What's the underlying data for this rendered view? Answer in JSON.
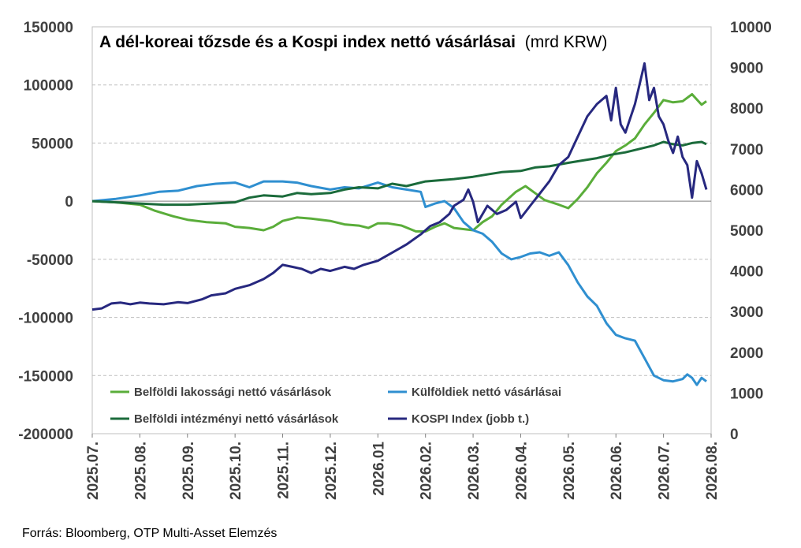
{
  "chart_data": {
    "type": "line",
    "title": "A dél-koreai tőzsde és a Kospi index nettó vásárlásai",
    "title_unit": "(mrd KRW)",
    "source": "Forrás: Bloomberg, OTP Multi-Asset Elemzés",
    "x_ticks": [
      "2025.07.",
      "2025.08.",
      "2025.09.",
      "2025.10.",
      "2025.11.",
      "2025.12.",
      "2026.01",
      "2026.02.",
      "2026.03.",
      "2026.04.",
      "2026.05.",
      "2026.06.",
      "2026.07.",
      "2026.08."
    ],
    "ylim_left": [
      -200000,
      150000
    ],
    "yticks_left": [
      150000,
      100000,
      50000,
      0,
      -50000,
      -100000,
      -150000,
      -200000
    ],
    "ylim_right": [
      0,
      10000
    ],
    "yticks_right": [
      10000,
      9000,
      8000,
      7000,
      6000,
      5000,
      4000,
      3000,
      2000,
      1000,
      0
    ],
    "grid": true,
    "legend_placement": "bottom-left",
    "series": [
      {
        "name": "Belföldi lakossági nettó vásárlások",
        "color": "#5aad3a",
        "axis": "left",
        "points": [
          [
            0,
            0
          ],
          [
            0.5,
            -1000
          ],
          [
            1,
            -3000
          ],
          [
            1.3,
            -8000
          ],
          [
            1.7,
            -13000
          ],
          [
            2,
            -16000
          ],
          [
            2.4,
            -18000
          ],
          [
            2.8,
            -19000
          ],
          [
            3,
            -22000
          ],
          [
            3.3,
            -23000
          ],
          [
            3.6,
            -25000
          ],
          [
            3.8,
            -22000
          ],
          [
            4,
            -17000
          ],
          [
            4.3,
            -14000
          ],
          [
            4.6,
            -15000
          ],
          [
            5,
            -17000
          ],
          [
            5.3,
            -20000
          ],
          [
            5.6,
            -21000
          ],
          [
            5.8,
            -23000
          ],
          [
            6,
            -19000
          ],
          [
            6.2,
            -19000
          ],
          [
            6.5,
            -21000
          ],
          [
            6.8,
            -26000
          ],
          [
            7,
            -26000
          ],
          [
            7.2,
            -22000
          ],
          [
            7.4,
            -19000
          ],
          [
            7.6,
            -23000
          ],
          [
            8,
            -25000
          ],
          [
            8.2,
            -18000
          ],
          [
            8.4,
            -13000
          ],
          [
            8.6,
            -3000
          ],
          [
            8.9,
            8000
          ],
          [
            9.1,
            13000
          ],
          [
            9.3,
            7000
          ],
          [
            9.5,
            1000
          ],
          [
            9.8,
            -3000
          ],
          [
            10,
            -6000
          ],
          [
            10.2,
            2000
          ],
          [
            10.4,
            12000
          ],
          [
            10.6,
            24000
          ],
          [
            10.8,
            33000
          ],
          [
            11,
            43000
          ],
          [
            11.2,
            48000
          ],
          [
            11.4,
            54000
          ],
          [
            11.6,
            66000
          ],
          [
            11.8,
            76000
          ],
          [
            12,
            87000
          ],
          [
            12.2,
            85000
          ],
          [
            12.4,
            86000
          ],
          [
            12.6,
            92000
          ],
          [
            12.8,
            83000
          ],
          [
            12.9,
            86000
          ]
        ]
      },
      {
        "name": "Külföldiek nettó vásárlásai",
        "color": "#2f8fd0",
        "axis": "left",
        "points": [
          [
            0,
            0
          ],
          [
            0.5,
            2000
          ],
          [
            1,
            5000
          ],
          [
            1.4,
            8000
          ],
          [
            1.8,
            9000
          ],
          [
            2.2,
            13000
          ],
          [
            2.6,
            15000
          ],
          [
            3,
            16000
          ],
          [
            3.3,
            12000
          ],
          [
            3.6,
            17000
          ],
          [
            4,
            17000
          ],
          [
            4.3,
            16000
          ],
          [
            4.6,
            13000
          ],
          [
            5,
            10000
          ],
          [
            5.3,
            12000
          ],
          [
            5.6,
            11000
          ],
          [
            6,
            16000
          ],
          [
            6.3,
            12000
          ],
          [
            6.6,
            10000
          ],
          [
            6.9,
            8000
          ],
          [
            7,
            -5000
          ],
          [
            7.2,
            -2000
          ],
          [
            7.4,
            0
          ],
          [
            7.6,
            -6000
          ],
          [
            7.8,
            -18000
          ],
          [
            8,
            -25000
          ],
          [
            8.2,
            -28000
          ],
          [
            8.4,
            -35000
          ],
          [
            8.6,
            -45000
          ],
          [
            8.8,
            -50000
          ],
          [
            9,
            -48000
          ],
          [
            9.2,
            -45000
          ],
          [
            9.4,
            -44000
          ],
          [
            9.6,
            -47000
          ],
          [
            9.8,
            -44000
          ],
          [
            10,
            -55000
          ],
          [
            10.2,
            -70000
          ],
          [
            10.4,
            -82000
          ],
          [
            10.6,
            -90000
          ],
          [
            10.8,
            -105000
          ],
          [
            11,
            -115000
          ],
          [
            11.2,
            -118000
          ],
          [
            11.4,
            -120000
          ],
          [
            11.6,
            -135000
          ],
          [
            11.8,
            -150000
          ],
          [
            12,
            -154000
          ],
          [
            12.2,
            -155000
          ],
          [
            12.4,
            -153000
          ],
          [
            12.5,
            -149000
          ],
          [
            12.6,
            -152000
          ],
          [
            12.7,
            -158000
          ],
          [
            12.8,
            -152000
          ],
          [
            12.9,
            -155000
          ]
        ]
      },
      {
        "name": "Belföldi intézményi nettó vásárlások",
        "color": "#1b6b3b",
        "axis": "left",
        "points": [
          [
            0,
            0
          ],
          [
            0.5,
            -1000
          ],
          [
            1,
            -2000
          ],
          [
            1.5,
            -3000
          ],
          [
            2,
            -3000
          ],
          [
            2.5,
            -2000
          ],
          [
            3,
            -1000
          ],
          [
            3.3,
            3000
          ],
          [
            3.6,
            5000
          ],
          [
            4,
            4000
          ],
          [
            4.3,
            7000
          ],
          [
            4.6,
            6000
          ],
          [
            5,
            7000
          ],
          [
            5.3,
            10000
          ],
          [
            5.6,
            12000
          ],
          [
            6,
            11000
          ],
          [
            6.3,
            15000
          ],
          [
            6.6,
            13000
          ],
          [
            7,
            17000
          ],
          [
            7.3,
            18000
          ],
          [
            7.6,
            19000
          ],
          [
            8,
            21000
          ],
          [
            8.3,
            23000
          ],
          [
            8.6,
            25000
          ],
          [
            9,
            26000
          ],
          [
            9.3,
            29000
          ],
          [
            9.6,
            30000
          ],
          [
            10,
            33000
          ],
          [
            10.3,
            35000
          ],
          [
            10.6,
            37000
          ],
          [
            10.9,
            40000
          ],
          [
            11.2,
            42000
          ],
          [
            11.5,
            45000
          ],
          [
            11.8,
            48000
          ],
          [
            12,
            51000
          ],
          [
            12.2,
            49000
          ],
          [
            12.4,
            48000
          ],
          [
            12.6,
            50000
          ],
          [
            12.8,
            51000
          ],
          [
            12.9,
            49000
          ]
        ]
      },
      {
        "name": "KOSPI Index (jobb t.)",
        "color": "#27287f",
        "axis": "right",
        "points": [
          [
            0,
            3050
          ],
          [
            0.2,
            3080
          ],
          [
            0.4,
            3200
          ],
          [
            0.6,
            3220
          ],
          [
            0.8,
            3180
          ],
          [
            1,
            3220
          ],
          [
            1.2,
            3200
          ],
          [
            1.5,
            3180
          ],
          [
            1.8,
            3230
          ],
          [
            2,
            3210
          ],
          [
            2.3,
            3300
          ],
          [
            2.5,
            3400
          ],
          [
            2.8,
            3450
          ],
          [
            3,
            3560
          ],
          [
            3.3,
            3650
          ],
          [
            3.6,
            3800
          ],
          [
            3.8,
            3950
          ],
          [
            4,
            4150
          ],
          [
            4.2,
            4100
          ],
          [
            4.4,
            4050
          ],
          [
            4.6,
            3950
          ],
          [
            4.8,
            4050
          ],
          [
            5,
            4000
          ],
          [
            5.3,
            4100
          ],
          [
            5.5,
            4050
          ],
          [
            5.7,
            4150
          ],
          [
            6,
            4250
          ],
          [
            6.3,
            4450
          ],
          [
            6.6,
            4650
          ],
          [
            6.9,
            4900
          ],
          [
            7.1,
            5100
          ],
          [
            7.3,
            5200
          ],
          [
            7.5,
            5400
          ],
          [
            7.6,
            5600
          ],
          [
            7.8,
            5750
          ],
          [
            7.9,
            6000
          ],
          [
            8,
            5700
          ],
          [
            8.1,
            5200
          ],
          [
            8.3,
            5600
          ],
          [
            8.5,
            5400
          ],
          [
            8.7,
            5500
          ],
          [
            8.9,
            5700
          ],
          [
            9.0,
            5300
          ],
          [
            9.2,
            5600
          ],
          [
            9.4,
            5900
          ],
          [
            9.6,
            6200
          ],
          [
            9.8,
            6600
          ],
          [
            10,
            6800
          ],
          [
            10.2,
            7300
          ],
          [
            10.4,
            7800
          ],
          [
            10.6,
            8100
          ],
          [
            10.8,
            8300
          ],
          [
            10.9,
            7700
          ],
          [
            11,
            8500
          ],
          [
            11.1,
            7600
          ],
          [
            11.2,
            7400
          ],
          [
            11.4,
            8100
          ],
          [
            11.6,
            9100
          ],
          [
            11.7,
            8200
          ],
          [
            11.8,
            8500
          ],
          [
            11.9,
            7800
          ],
          [
            12,
            7600
          ],
          [
            12.1,
            7200
          ],
          [
            12.2,
            6900
          ],
          [
            12.3,
            7300
          ],
          [
            12.4,
            6800
          ],
          [
            12.5,
            6600
          ],
          [
            12.6,
            5800
          ],
          [
            12.7,
            6700
          ],
          [
            12.8,
            6400
          ],
          [
            12.9,
            6000
          ]
        ]
      }
    ]
  }
}
